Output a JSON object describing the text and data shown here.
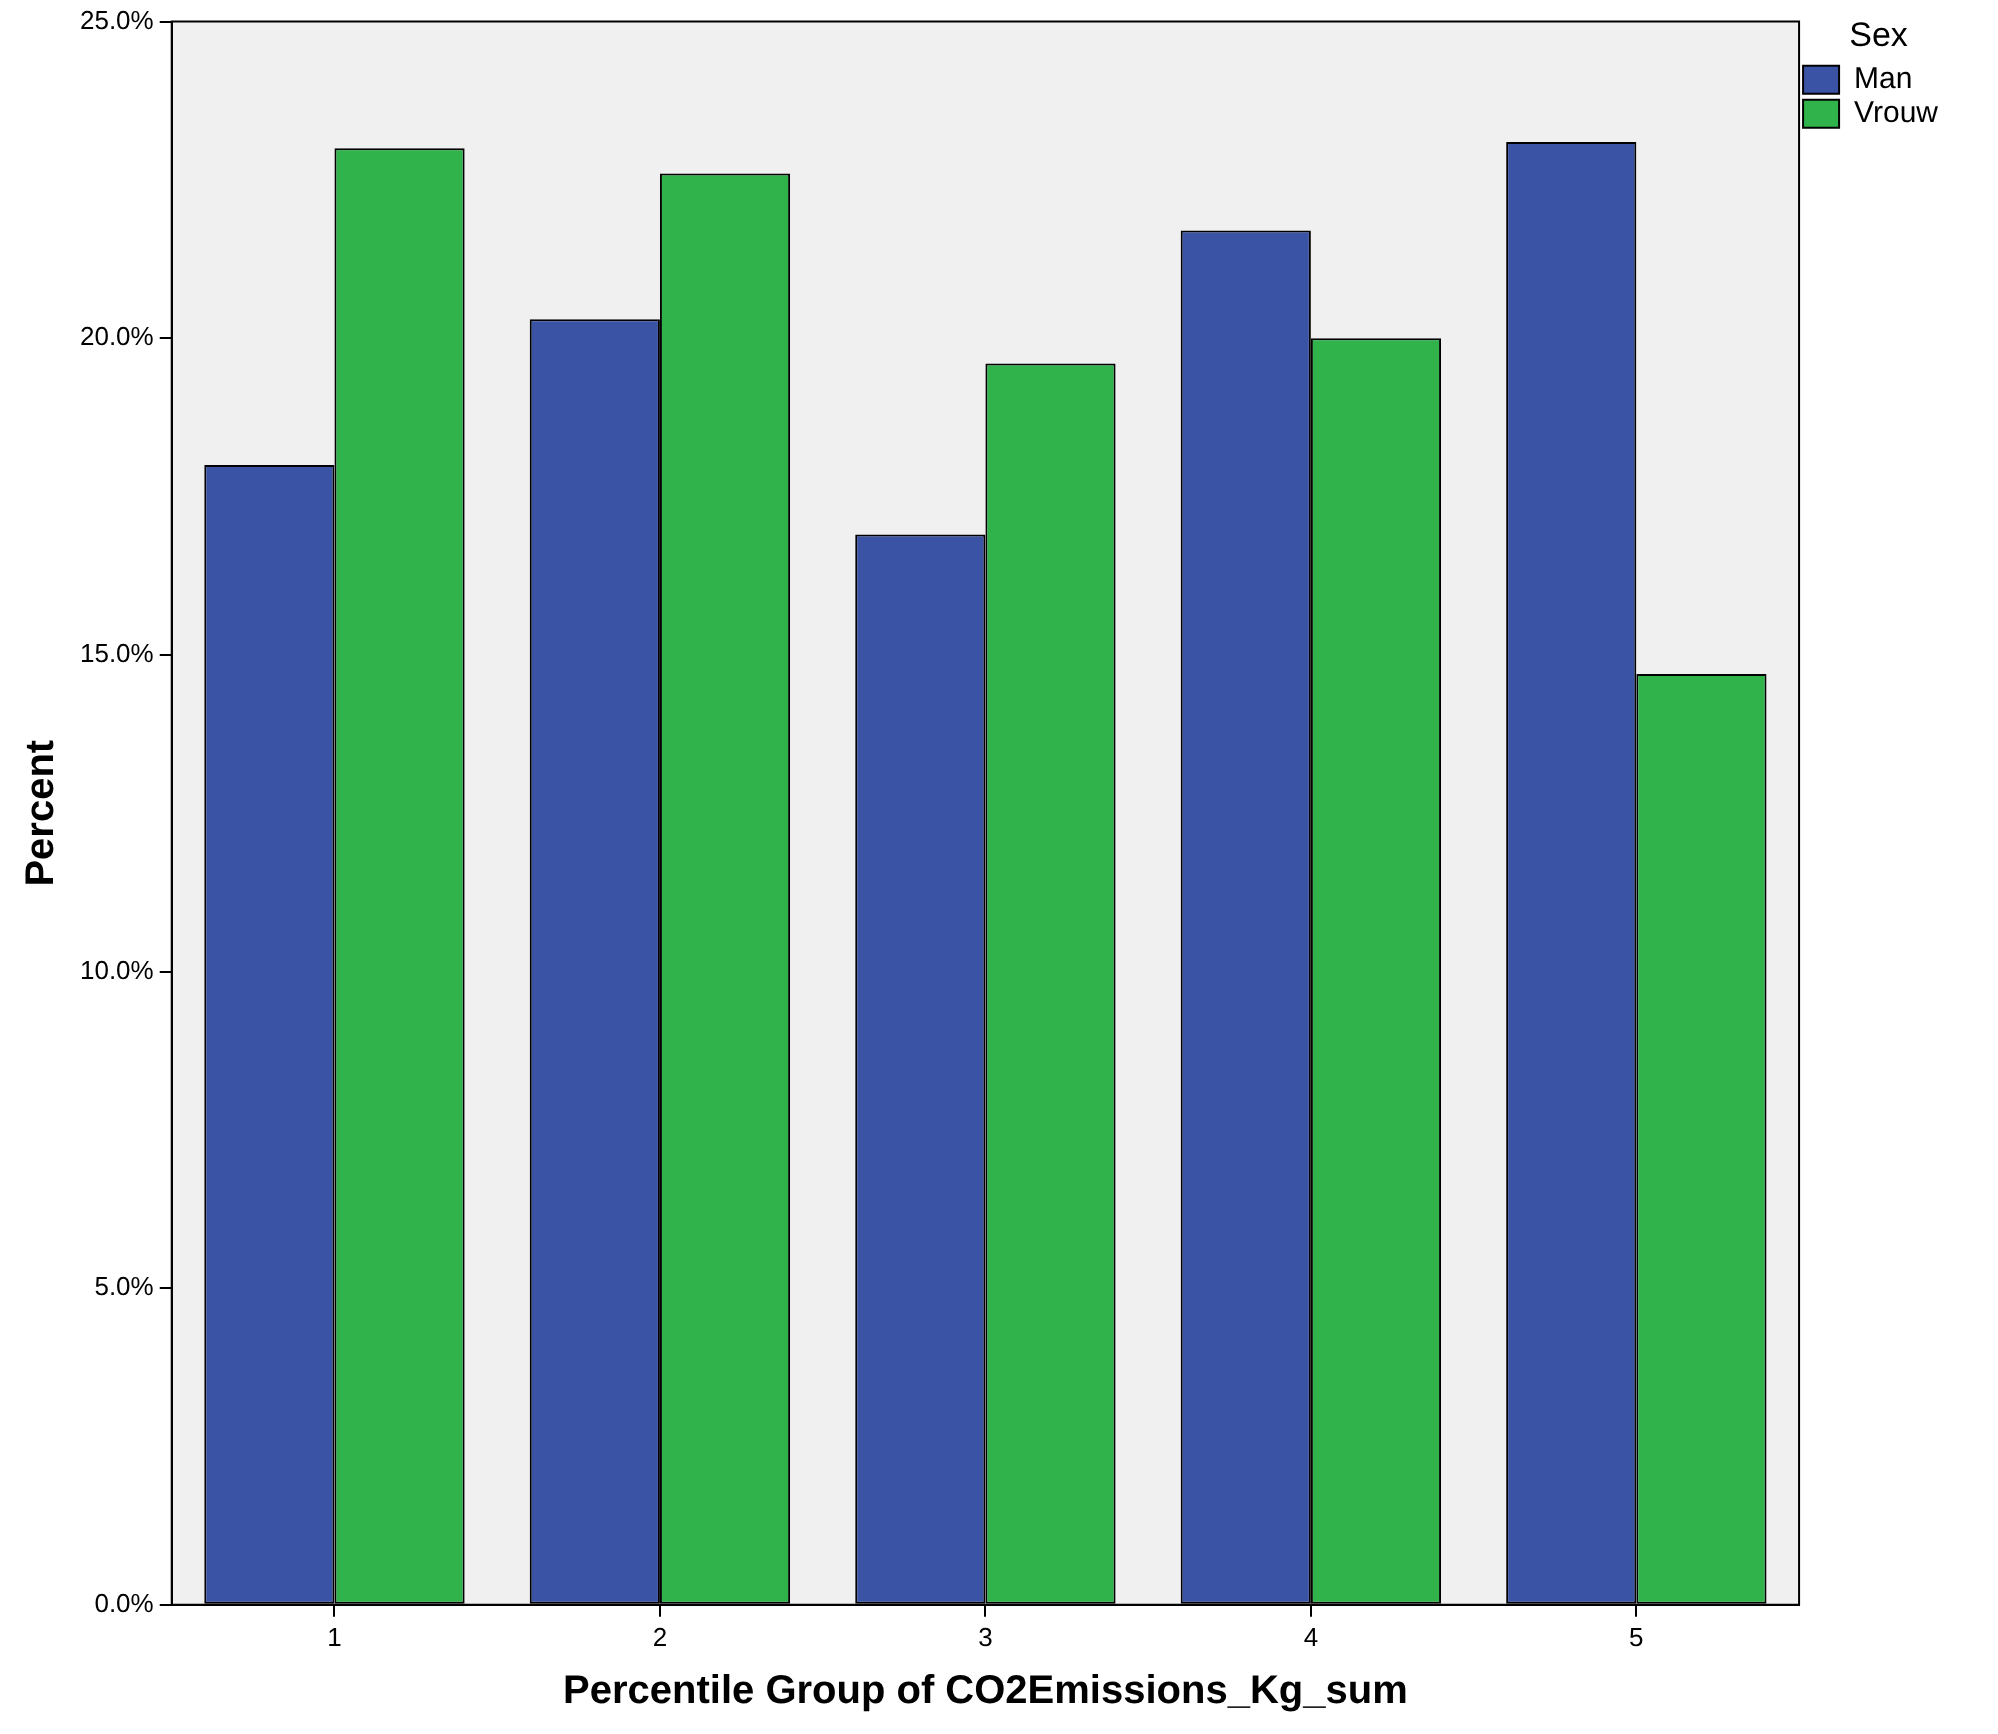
{
  "chart_data": {
    "type": "bar",
    "xlabel": "Percentile Group of CO2Emissions_Kg_sum",
    "ylabel": "Percent",
    "legend_title": "Sex",
    "legend": "top right",
    "categories": [
      "1",
      "2",
      "3",
      "4",
      "5"
    ],
    "series": [
      {
        "name": "Man",
        "color": "#3a53a4",
        "values": [
          18.0,
          20.3,
          16.9,
          21.7,
          23.1
        ]
      },
      {
        "name": "Vrouw",
        "color": "#2fb34a",
        "values": [
          23.0,
          22.6,
          19.6,
          20.0,
          14.7
        ]
      }
    ],
    "ylim": [
      0,
      25
    ],
    "yticks": [
      {
        "value": 0,
        "label": "0.0%"
      },
      {
        "value": 5,
        "label": "5.0%"
      },
      {
        "value": 10,
        "label": "10.0%"
      },
      {
        "value": 15,
        "label": "15.0%"
      },
      {
        "value": 20,
        "label": "20.0%"
      },
      {
        "value": 25,
        "label": "25.0%"
      }
    ]
  }
}
